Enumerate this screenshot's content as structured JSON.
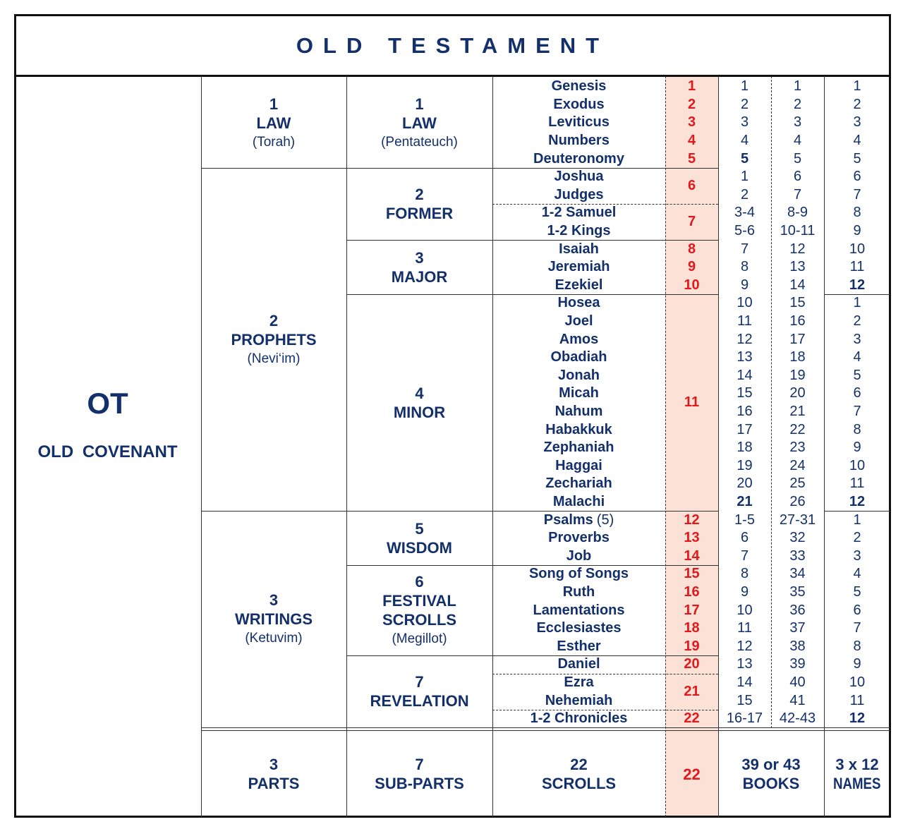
{
  "title": "OLD TESTAMENT",
  "side": {
    "abbr": "OT",
    "name": "OLD COVENANT"
  },
  "parts": [
    {
      "number": "1",
      "name": "LAW",
      "subtitle": "(Torah)",
      "sub_parts": [
        {
          "number": "1",
          "name": "LAW",
          "subtitle": "(Pentateuch)",
          "scrolls": [
            {
              "number": "1",
              "books": [
                {
                  "name": "Genesis",
                  "part_no": "1",
                  "ot_no": "1",
                  "name_no": "1"
                }
              ]
            },
            {
              "number": "2",
              "books": [
                {
                  "name": "Exodus",
                  "part_no": "2",
                  "ot_no": "2",
                  "name_no": "2"
                }
              ]
            },
            {
              "number": "3",
              "books": [
                {
                  "name": "Leviticus",
                  "part_no": "3",
                  "ot_no": "3",
                  "name_no": "3"
                }
              ]
            },
            {
              "number": "4",
              "books": [
                {
                  "name": "Numbers",
                  "part_no": "4",
                  "ot_no": "4",
                  "name_no": "4"
                }
              ]
            },
            {
              "number": "5",
              "books": [
                {
                  "name": "Deuteronomy",
                  "part_no": "5",
                  "ot_no": "5",
                  "name_no": "5"
                }
              ]
            }
          ]
        }
      ]
    },
    {
      "number": "2",
      "name": "PROPHETS",
      "subtitle": "(Nevi‘im)",
      "sub_parts": [
        {
          "number": "2",
          "name": "FORMER",
          "scrolls": [
            {
              "number": "6",
              "books": [
                {
                  "name": "Joshua",
                  "part_no": "1",
                  "ot_no": "6",
                  "name_no": "6"
                },
                {
                  "name": "Judges",
                  "part_no": "2",
                  "ot_no": "7",
                  "name_no": "7"
                }
              ]
            },
            {
              "number": "7",
              "books": [
                {
                  "name": "1-2 Samuel",
                  "part_no": "3-4",
                  "ot_no": "8-9",
                  "name_no": "8"
                },
                {
                  "name": "1-2 Kings",
                  "part_no": "5-6",
                  "ot_no": "10-11",
                  "name_no": "9"
                }
              ]
            }
          ]
        },
        {
          "number": "3",
          "name": "MAJOR",
          "scrolls": [
            {
              "number": "8",
              "books": [
                {
                  "name": "Isaiah",
                  "part_no": "7",
                  "ot_no": "12",
                  "name_no": "10"
                }
              ]
            },
            {
              "number": "9",
              "books": [
                {
                  "name": "Jeremiah",
                  "part_no": "8",
                  "ot_no": "13",
                  "name_no": "11"
                }
              ]
            },
            {
              "number": "10",
              "books": [
                {
                  "name": "Ezekiel",
                  "part_no": "9",
                  "ot_no": "14",
                  "name_no": "12"
                }
              ]
            }
          ]
        },
        {
          "number": "4",
          "name": "MINOR",
          "scrolls": [
            {
              "number": "11",
              "books": [
                {
                  "name": "Hosea",
                  "part_no": "10",
                  "ot_no": "15",
                  "name_no": "1"
                },
                {
                  "name": "Joel",
                  "part_no": "11",
                  "ot_no": "16",
                  "name_no": "2"
                },
                {
                  "name": "Amos",
                  "part_no": "12",
                  "ot_no": "17",
                  "name_no": "3"
                },
                {
                  "name": "Obadiah",
                  "part_no": "13",
                  "ot_no": "18",
                  "name_no": "4"
                },
                {
                  "name": "Jonah",
                  "part_no": "14",
                  "ot_no": "19",
                  "name_no": "5"
                },
                {
                  "name": "Micah",
                  "part_no": "15",
                  "ot_no": "20",
                  "name_no": "6"
                },
                {
                  "name": "Nahum",
                  "part_no": "16",
                  "ot_no": "21",
                  "name_no": "7"
                },
                {
                  "name": "Habakkuk",
                  "part_no": "17",
                  "ot_no": "22",
                  "name_no": "8"
                },
                {
                  "name": "Zephaniah",
                  "part_no": "18",
                  "ot_no": "23",
                  "name_no": "9"
                },
                {
                  "name": "Haggai",
                  "part_no": "19",
                  "ot_no": "24",
                  "name_no": "10"
                },
                {
                  "name": "Zechariah",
                  "part_no": "20",
                  "ot_no": "25",
                  "name_no": "11"
                },
                {
                  "name": "Malachi",
                  "part_no": "21",
                  "ot_no": "26",
                  "name_no": "12"
                }
              ]
            }
          ]
        }
      ]
    },
    {
      "number": "3",
      "name": "WRITINGS",
      "subtitle": "(Ketuvim)",
      "sub_parts": [
        {
          "number": "5",
          "name": "WISDOM",
          "scrolls": [
            {
              "number": "12",
              "books": [
                {
                  "name": "Psalms",
                  "note": "(5)",
                  "part_no": "1-5",
                  "ot_no": "27-31",
                  "name_no": "1"
                }
              ]
            },
            {
              "number": "13",
              "books": [
                {
                  "name": "Proverbs",
                  "part_no": "6",
                  "ot_no": "32",
                  "name_no": "2"
                }
              ]
            },
            {
              "number": "14",
              "books": [
                {
                  "name": "Job",
                  "part_no": "7",
                  "ot_no": "33",
                  "name_no": "3"
                }
              ]
            }
          ]
        },
        {
          "number": "6",
          "name": "FESTIVAL SCROLLS",
          "subtitle": "(Megillot)",
          "scrolls": [
            {
              "number": "15",
              "books": [
                {
                  "name": "Song of Songs",
                  "part_no": "8",
                  "ot_no": "34",
                  "name_no": "4"
                }
              ]
            },
            {
              "number": "16",
              "books": [
                {
                  "name": "Ruth",
                  "part_no": "9",
                  "ot_no": "35",
                  "name_no": "5"
                }
              ]
            },
            {
              "number": "17",
              "books": [
                {
                  "name": "Lamentations",
                  "part_no": "10",
                  "ot_no": "36",
                  "name_no": "6"
                }
              ]
            },
            {
              "number": "18",
              "books": [
                {
                  "name": "Ecclesiastes",
                  "part_no": "11",
                  "ot_no": "37",
                  "name_no": "7"
                }
              ]
            },
            {
              "number": "19",
              "books": [
                {
                  "name": "Esther",
                  "part_no": "12",
                  "ot_no": "38",
                  "name_no": "8"
                }
              ]
            }
          ]
        },
        {
          "number": "7",
          "name": "REVELATION",
          "scrolls": [
            {
              "number": "20",
              "books": [
                {
                  "name": "Daniel",
                  "part_no": "13",
                  "ot_no": "39",
                  "name_no": "9"
                }
              ]
            },
            {
              "number": "21",
              "books": [
                {
                  "name": "Ezra",
                  "part_no": "14",
                  "ot_no": "40",
                  "name_no": "10"
                },
                {
                  "name": "Nehemiah",
                  "part_no": "15",
                  "ot_no": "41",
                  "name_no": "11"
                }
              ]
            },
            {
              "number": "22",
              "books": [
                {
                  "name": "1-2 Chronicles",
                  "part_no": "16-17",
                  "ot_no": "42-43",
                  "name_no": "12"
                }
              ]
            }
          ]
        }
      ]
    }
  ],
  "footer": {
    "parts": {
      "number": "3",
      "label": "PARTS"
    },
    "sub_parts": {
      "number": "7",
      "label": "SUB-PARTS"
    },
    "scrolls": {
      "number": "22",
      "label": "SCROLLS"
    },
    "scroll_total": "22",
    "books": {
      "number": "39 or 43",
      "label": "BOOKS"
    },
    "names": {
      "number": "3 x 12",
      "label": "NAMES"
    }
  }
}
